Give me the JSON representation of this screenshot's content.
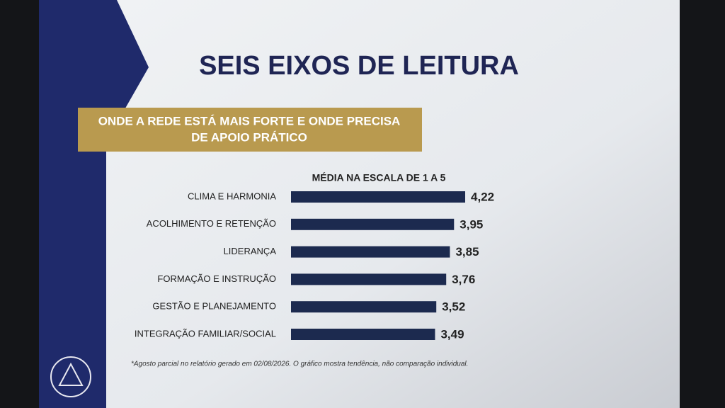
{
  "slide": {
    "title": "SEIS EIXOS DE LEITURA",
    "banner": [
      "ONDE A REDE ESTÁ MAIS FORTE E ONDE PRECISA",
      "DE APOIO PRÁTICO"
    ],
    "footnote": "*Agosto parcial no relatório gerado em 02/08/2026. O gráfico mostra tendência, não comparação individual."
  },
  "chart_data": {
    "type": "bar",
    "orientation": "horizontal",
    "title": "MÉDIA NA ESCALA DE 1 A 5",
    "categories": [
      "CLIMA E HARMONIA",
      "ACOLHIMENTO E RETENÇÃO",
      "LIDERANÇA",
      "FORMAÇÃO E INSTRUÇÃO",
      "GESTÃO E PLANEJAMENTO",
      "INTEGRAÇÃO FAMILIAR/SOCIAL"
    ],
    "values": [
      4.22,
      3.95,
      3.85,
      3.76,
      3.52,
      3.49
    ],
    "value_labels": [
      "4,22",
      "3,95",
      "3,85",
      "3,76",
      "3,52",
      "3,49"
    ],
    "color": "#1c2a4f"
  }
}
